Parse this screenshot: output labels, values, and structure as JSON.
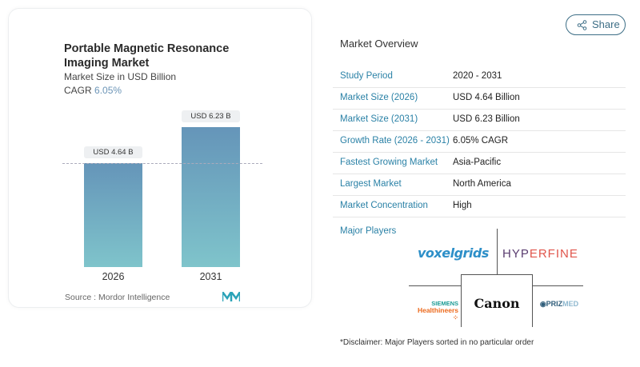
{
  "chart_data": {
    "type": "bar",
    "title": "Portable Magnetic Resonance Imaging Market",
    "subtitle": "Market Size in USD Billion",
    "cagr_label": "CAGR",
    "cagr_value": "6.05%",
    "categories": [
      "2026",
      "2031"
    ],
    "values": [
      4.64,
      6.23
    ],
    "data_labels": [
      "USD 4.64 B",
      "USD 6.23 B"
    ],
    "colors": {
      "bar_top": "#6595b9",
      "bar_bottom": "#7fc4cb"
    },
    "source": "Source :  Mordor Intelligence"
  },
  "share": {
    "label": "Share",
    "icon": "share-icon"
  },
  "overview": {
    "title": "Market Overview",
    "rows": [
      {
        "label": "Study Period",
        "value": "2020 - 2031"
      },
      {
        "label": "Market Size (2026)",
        "value": "USD 4.64 Billion"
      },
      {
        "label": "Market Size (2031)",
        "value": "USD 6.23 Billion"
      },
      {
        "label": "Growth Rate (2026 - 2031)",
        "value": "6.05% CAGR"
      },
      {
        "label": "Fastest Growing Market",
        "value": "Asia-Pacific"
      },
      {
        "label": "Largest Market",
        "value": "North America"
      },
      {
        "label": "Market Concentration",
        "value": "High"
      }
    ],
    "major_players_label": "Major Players",
    "players": [
      "voxelgrids",
      "HYPERFINE",
      "SIEMENS Healthineers",
      "Canon",
      "PRIZMED"
    ],
    "disclaimer": "*Disclaimer: Major Players sorted in no particular order"
  }
}
